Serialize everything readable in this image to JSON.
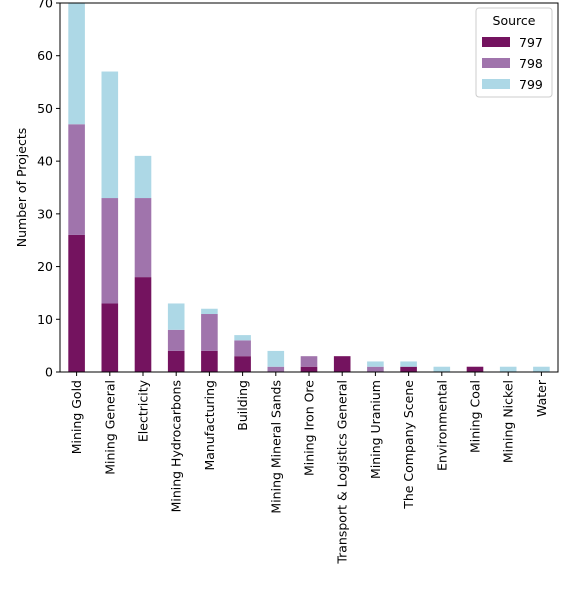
{
  "chart_data": {
    "type": "bar",
    "stacked": true,
    "title": "",
    "xlabel": "",
    "ylabel": "Number of Projects",
    "ylim": [
      0,
      70
    ],
    "yticks": [
      0,
      10,
      20,
      30,
      40,
      50,
      60,
      70
    ],
    "grid": false,
    "legend": {
      "title": "Source",
      "position": "top-right"
    },
    "categories": [
      "Mining Gold",
      "Mining General",
      "Electricity",
      "Mining Hydrocarbons",
      "Manufacturing",
      "Building",
      "Mining Mineral Sands",
      "Mining Iron Ore",
      "Transport & Logistics General",
      "Mining Uranium",
      "The Company Scene",
      "Environmental",
      "Mining Coal",
      "Mining Nickel",
      "Water"
    ],
    "series": [
      {
        "name": "797",
        "color": "#74135f",
        "values": [
          26,
          13,
          18,
          4,
          4,
          3,
          0,
          1,
          3,
          0,
          1,
          0,
          1,
          0,
          0
        ]
      },
      {
        "name": "798",
        "color": "#a074ac",
        "values": [
          21,
          20,
          15,
          4,
          7,
          3,
          1,
          2,
          0,
          1,
          0,
          0,
          0,
          0,
          0
        ]
      },
      {
        "name": "799",
        "color": "#add8e6",
        "values": [
          23,
          24,
          8,
          5,
          1,
          1,
          3,
          0,
          0,
          1,
          1,
          1,
          0,
          1,
          1
        ]
      }
    ]
  }
}
